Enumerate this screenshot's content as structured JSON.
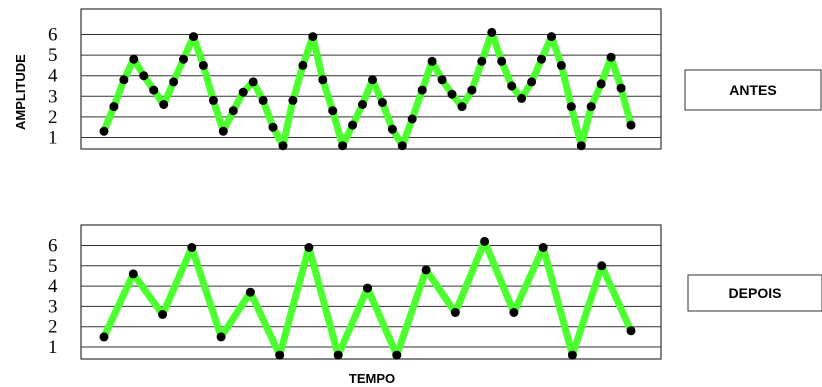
{
  "chart_data": [
    {
      "type": "line",
      "label": "ANTES",
      "ylabel": "AMPLITUDE",
      "xlabel": "",
      "yticks": [
        1,
        2,
        3,
        4,
        5,
        6
      ],
      "ylim": [
        0.5,
        6.3
      ],
      "grid": true,
      "legend": "none",
      "series": [
        {
          "values": [
            1.3,
            2.5,
            3.8,
            4.8,
            4.0,
            3.3,
            2.6,
            3.7,
            4.8,
            5.9,
            4.5,
            2.8,
            1.3,
            2.3,
            3.2,
            3.7,
            2.8,
            1.5,
            0.6,
            2.8,
            4.5,
            5.9,
            3.8,
            2.3,
            0.6,
            1.6,
            2.6,
            3.8,
            2.7,
            1.4,
            0.6,
            1.9,
            3.3,
            4.7,
            3.8,
            3.1,
            2.5,
            3.3,
            4.7,
            6.1,
            4.7,
            3.5,
            2.9,
            3.7,
            4.8,
            5.9,
            4.5,
            2.5,
            0.6,
            2.5,
            3.6,
            4.9,
            3.4,
            1.6
          ],
          "color": "#4cff2e"
        }
      ]
    },
    {
      "type": "line",
      "label": "DEPOIS",
      "xlabel": "TEMPO",
      "ylabel": "",
      "yticks": [
        1,
        2,
        3,
        4,
        5,
        6
      ],
      "ylim": [
        0.5,
        6.3
      ],
      "grid": true,
      "legend": "none",
      "series": [
        {
          "values": [
            1.5,
            4.6,
            2.6,
            5.9,
            1.5,
            3.7,
            0.6,
            5.9,
            0.6,
            3.9,
            0.6,
            4.8,
            2.7,
            6.2,
            2.7,
            5.9,
            0.6,
            5.0,
            1.8
          ],
          "color": "#4cff2e"
        }
      ]
    }
  ],
  "colors": {
    "line": "#4cff2e",
    "marker": "#000000",
    "grid": "#333333"
  }
}
